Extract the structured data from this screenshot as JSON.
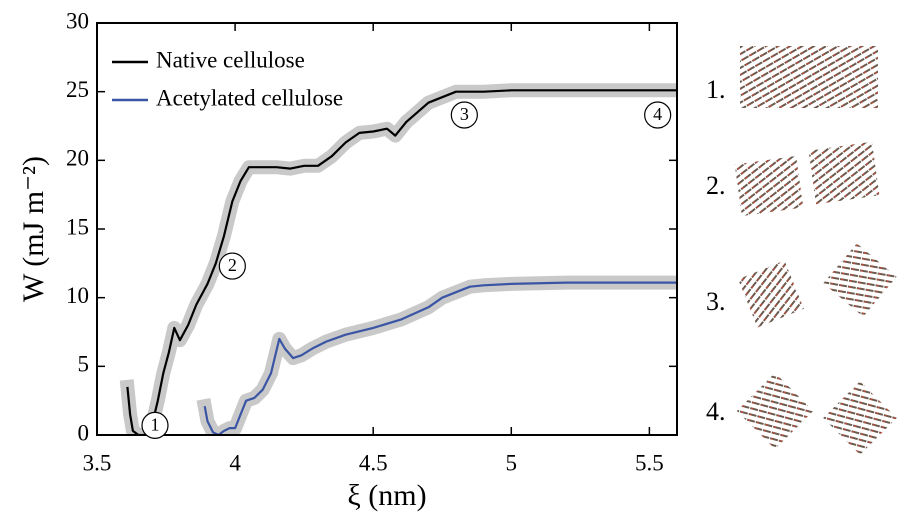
{
  "chart_data": {
    "type": "line",
    "xlabel": "ξ (nm)",
    "ylabel": "W (mJ m⁻²)",
    "xlim": [
      3.5,
      5.6
    ],
    "ylim": [
      0,
      30
    ],
    "xticks": [
      3.5,
      4,
      4.5,
      5,
      5.5
    ],
    "yticks": [
      0,
      5,
      10,
      15,
      20,
      25,
      30
    ],
    "legend": "upper left",
    "band_color": "#c9c9c9",
    "series": [
      {
        "name": "Native cellulose",
        "color": "#000000",
        "x": [
          3.61,
          3.62,
          3.63,
          3.65,
          3.68,
          3.7,
          3.72,
          3.74,
          3.76,
          3.78,
          3.8,
          3.83,
          3.86,
          3.9,
          3.93,
          3.96,
          3.99,
          4.02,
          4.05,
          4.1,
          4.15,
          4.2,
          4.25,
          4.3,
          4.35,
          4.4,
          4.45,
          4.5,
          4.55,
          4.58,
          4.62,
          4.66,
          4.7,
          4.75,
          4.8,
          4.9,
          5.0,
          5.2,
          5.4,
          5.6
        ],
        "values": [
          3.5,
          1.5,
          0.3,
          0,
          0,
          0.8,
          2.5,
          4.5,
          6,
          7.8,
          6.9,
          8,
          9.5,
          11,
          12.5,
          14.5,
          17,
          18.5,
          19.5,
          19.5,
          19.5,
          19.4,
          19.6,
          19.6,
          20.3,
          21.3,
          22,
          22.1,
          22.3,
          21.8,
          22.8,
          23.5,
          24.2,
          24.6,
          25,
          25,
          25.1,
          25.1,
          25.1,
          25.1
        ]
      },
      {
        "name": "Acetylated cellulose",
        "color": "#3a55a4",
        "x": [
          3.89,
          3.9,
          3.92,
          3.94,
          3.96,
          3.98,
          4.0,
          4.02,
          4.04,
          4.07,
          4.1,
          4.13,
          4.16,
          4.18,
          4.21,
          4.24,
          4.28,
          4.33,
          4.4,
          4.5,
          4.6,
          4.7,
          4.75,
          4.8,
          4.85,
          4.9,
          5.0,
          5.2,
          5.4,
          5.6
        ],
        "values": [
          2.1,
          1.0,
          0.2,
          0,
          0.3,
          0.5,
          0.5,
          1.5,
          2.5,
          2.7,
          3.3,
          4.5,
          7.0,
          6.3,
          5.6,
          5.8,
          6.3,
          6.8,
          7.3,
          7.8,
          8.4,
          9.3,
          10,
          10.4,
          10.8,
          10.9,
          11,
          11.1,
          11.1,
          11.1
        ]
      }
    ],
    "annotations": [
      {
        "text": "1",
        "x": 3.71,
        "y": 0.7
      },
      {
        "text": "2",
        "x": 3.99,
        "y": 12.3
      },
      {
        "text": "3",
        "x": 4.83,
        "y": 23.3
      },
      {
        "text": "4",
        "x": 5.53,
        "y": 23.3
      }
    ]
  },
  "side_panels": {
    "labels": [
      "1.",
      "2.",
      "3.",
      "4."
    ]
  }
}
